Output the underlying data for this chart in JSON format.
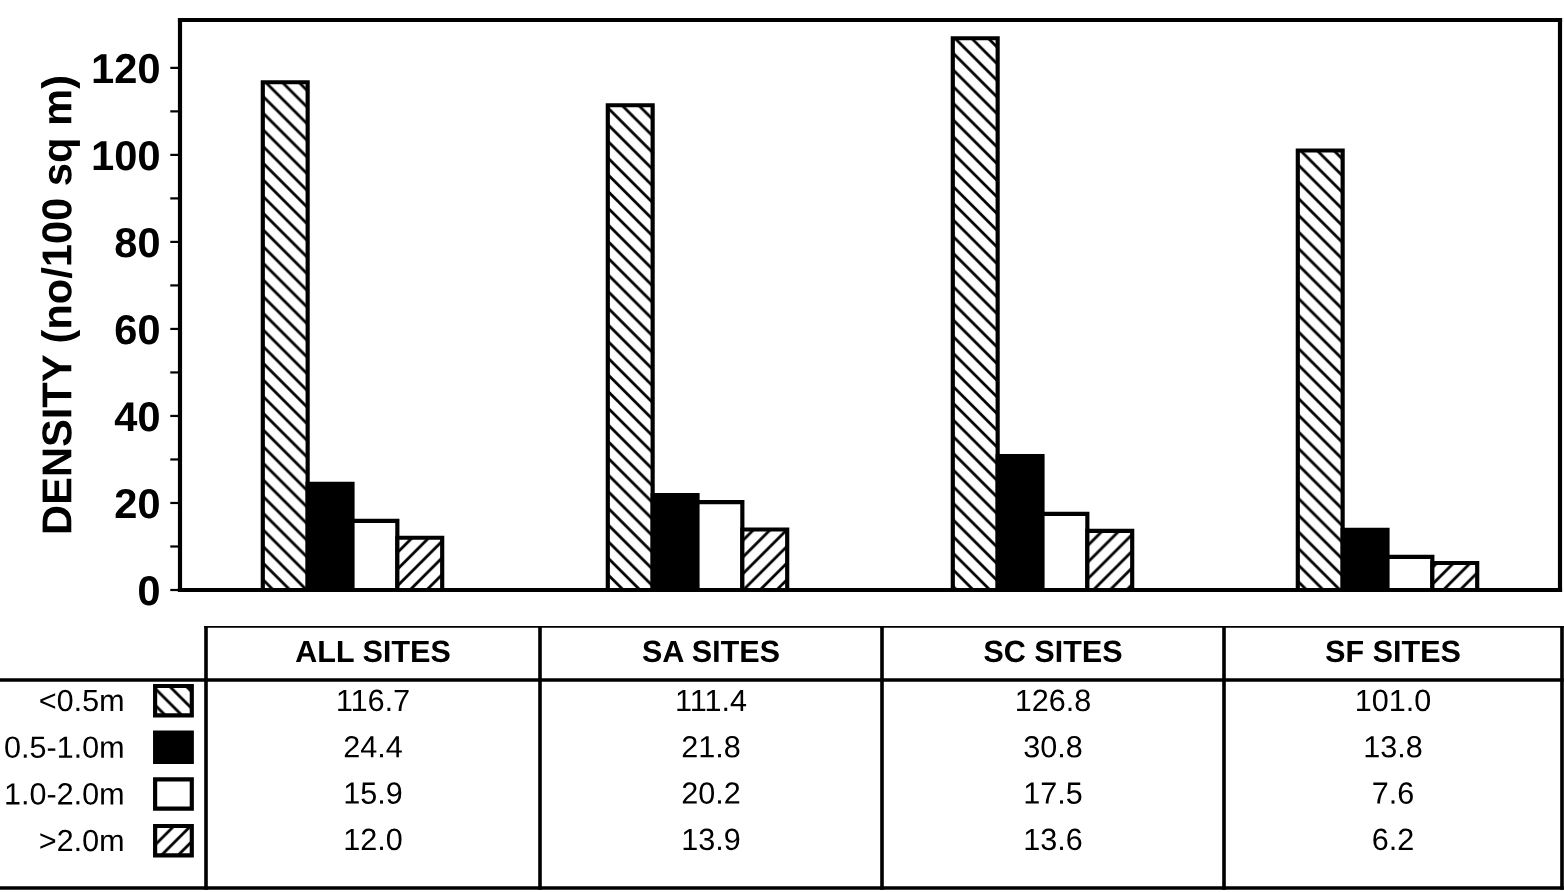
{
  "chart_data": {
    "type": "bar",
    "ylabel": "DENSITY (no/100 sq m)",
    "categories": [
      "ALL SITES",
      "SA SITES",
      "SC SITES",
      "SF SITES"
    ],
    "series": [
      {
        "name": "<0.5m",
        "color": "#000000",
        "values": [
          116.7,
          111.4,
          126.8,
          101.0
        ],
        "value_labels": [
          "116.7",
          "111.4",
          "126.8",
          "101.0"
        ]
      },
      {
        "name": "0.5-1.0m",
        "color": "#000000",
        "values": [
          24.4,
          21.8,
          30.8,
          13.8
        ],
        "value_labels": [
          "24.4",
          "21.8",
          "30.8",
          "13.8"
        ]
      },
      {
        "name": "1.0-2.0m",
        "color": "#ffffff",
        "values": [
          15.9,
          20.2,
          17.5,
          7.6
        ],
        "value_labels": [
          "15.9",
          "20.2",
          "17.5",
          "7.6"
        ]
      },
      {
        "name": ">2.0m",
        "color": "#000000",
        "values": [
          12.0,
          13.9,
          13.6,
          6.2
        ],
        "value_labels": [
          "12.0",
          "13.9",
          "13.6",
          "6.2"
        ]
      }
    ],
    "ylim": [
      0,
      131
    ],
    "yticks": [
      0,
      {
        "value": 10,
        "label": null
      },
      20,
      {
        "value": 30,
        "label": null
      },
      40,
      {
        "value": 50,
        "label": null
      },
      60,
      {
        "value": 70,
        "label": null
      },
      80,
      {
        "value": 90,
        "label": null
      },
      100,
      {
        "value": 110,
        "label": null
      },
      120
    ],
    "legend": "bottom left",
    "grid": false
  }
}
